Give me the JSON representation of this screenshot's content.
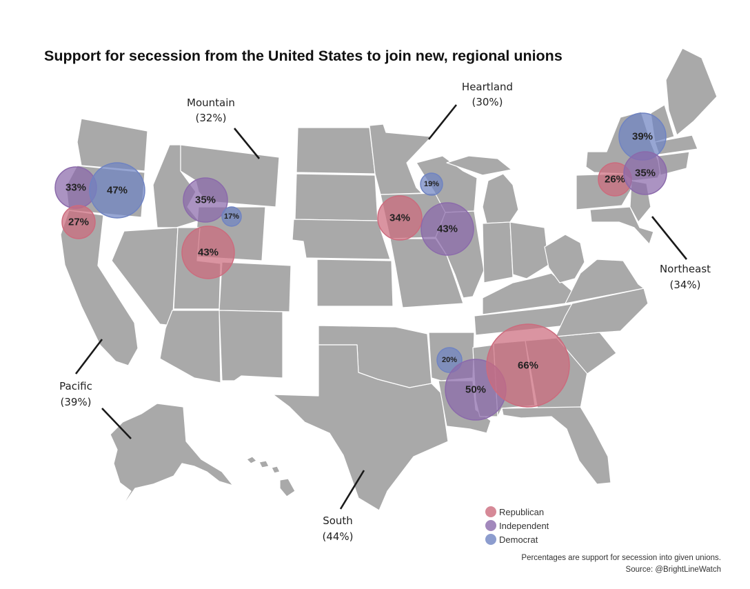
{
  "title": "Support for secession from the United States to join new, regional unions",
  "regions": {
    "pacific": {
      "name": "Pacific",
      "pct": "(39%)"
    },
    "mountain": {
      "name": "Mountain",
      "pct": "(32%)"
    },
    "heartland": {
      "name": "Heartland",
      "pct": "(30%)"
    },
    "northeast": {
      "name": "Northeast",
      "pct": "(34%)"
    },
    "south": {
      "name": "South",
      "pct": "(44%)"
    }
  },
  "legend": {
    "republican": "Republican",
    "independent": "Independent",
    "democrat": "Democrat"
  },
  "colors": {
    "land": "#a9a9a9",
    "republican": "#cc6b7d",
    "independent": "#8b6aab",
    "democrat": "#6f83c2"
  },
  "footnote": {
    "line1": "Percentages are support for secession into given unions.",
    "line2": "Source: @BrightLineWatch"
  },
  "chart_data": {
    "type": "bubble-map",
    "unit": "percent support",
    "series": [
      {
        "name": "Republican",
        "values": {
          "Pacific": 27,
          "Mountain": 43,
          "Heartland": 34,
          "Northeast": 26,
          "South": 66
        }
      },
      {
        "name": "Independent",
        "values": {
          "Pacific": 33,
          "Mountain": 35,
          "Heartland": 43,
          "Northeast": 35,
          "South": 50
        }
      },
      {
        "name": "Democrat",
        "values": {
          "Pacific": 47,
          "Mountain": 17,
          "Heartland": 19,
          "Northeast": 39,
          "South": 20
        }
      }
    ],
    "region_totals": {
      "Pacific": 39,
      "Mountain": 32,
      "Heartland": 30,
      "Northeast": 34,
      "South": 44
    },
    "bubbles": [
      {
        "id": "pacific-independent",
        "party": "independent",
        "label": "33%"
      },
      {
        "id": "pacific-democrat",
        "party": "democrat",
        "label": "47%"
      },
      {
        "id": "pacific-republican",
        "party": "republican",
        "label": "27%"
      },
      {
        "id": "mountain-independent",
        "party": "independent",
        "label": "35%"
      },
      {
        "id": "mountain-democrat",
        "party": "democrat",
        "label": "17%"
      },
      {
        "id": "mountain-republican",
        "party": "republican",
        "label": "43%"
      },
      {
        "id": "heartland-democrat",
        "party": "democrat",
        "label": "19%"
      },
      {
        "id": "heartland-republican",
        "party": "republican",
        "label": "34%"
      },
      {
        "id": "heartland-independent",
        "party": "independent",
        "label": "43%"
      },
      {
        "id": "northeast-democrat",
        "party": "democrat",
        "label": "39%"
      },
      {
        "id": "northeast-republican",
        "party": "republican",
        "label": "26%"
      },
      {
        "id": "northeast-independent",
        "party": "independent",
        "label": "35%"
      },
      {
        "id": "south-democrat",
        "party": "democrat",
        "label": "20%"
      },
      {
        "id": "south-independent",
        "party": "independent",
        "label": "50%"
      },
      {
        "id": "south-republican",
        "party": "republican",
        "label": "66%"
      }
    ]
  }
}
